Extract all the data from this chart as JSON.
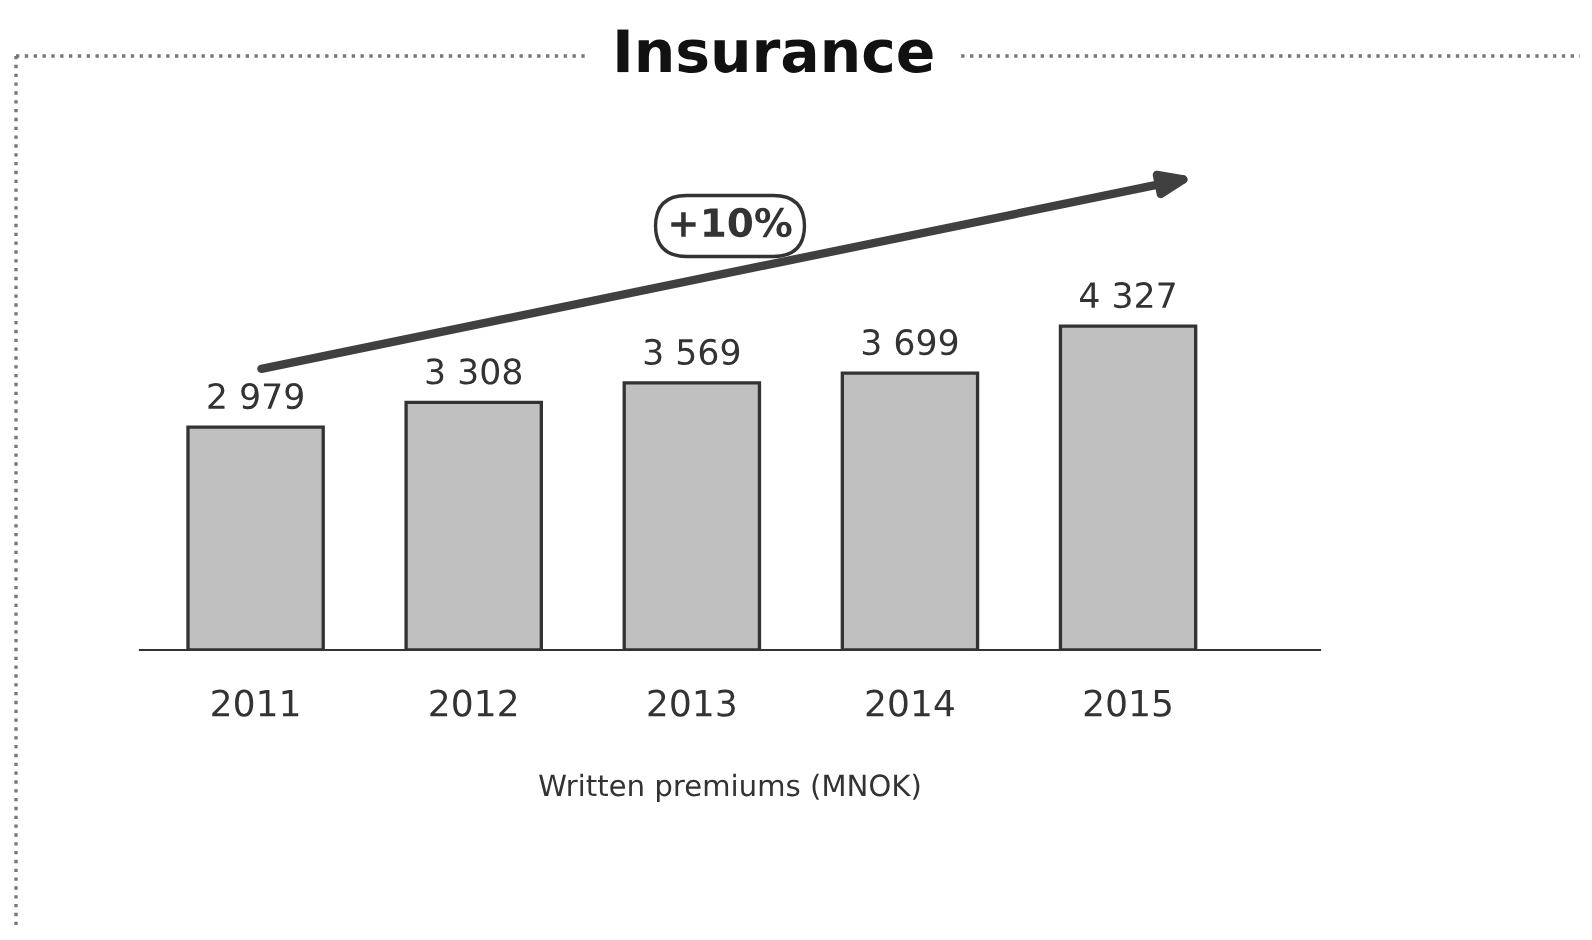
{
  "chart_data": {
    "type": "bar",
    "title": "Insurance",
    "xlabel": "Written premiums (MNOK)",
    "categories": [
      "2011",
      "2012",
      "2013",
      "2014",
      "2015"
    ],
    "values": [
      2979,
      3308,
      3569,
      3699,
      4327
    ],
    "value_labels": [
      "2 979",
      "3 308",
      "3 569",
      "3 699",
      "4 327"
    ],
    "color": "#c0c0c0",
    "grid": false,
    "legend": false,
    "annotations": [
      "+10%"
    ]
  }
}
